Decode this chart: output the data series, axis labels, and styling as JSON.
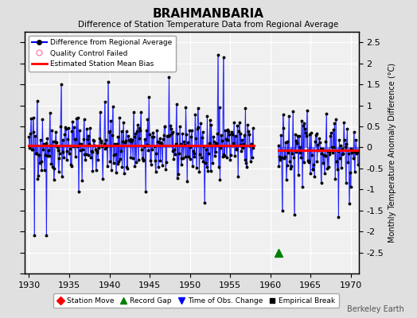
{
  "title": "BRAHMANBARIA",
  "subtitle": "Difference of Station Temperature Data from Regional Average",
  "ylabel_right": "Monthly Temperature Anomaly Difference (°C)",
  "xlim": [
    1929.5,
    1971
  ],
  "ylim": [
    -3,
    2.75
  ],
  "yticks_right": [
    -2.5,
    -2,
    -1.5,
    -1,
    -0.5,
    0,
    0.5,
    1,
    1.5,
    2,
    2.5
  ],
  "yticks_left": [
    -3,
    -2.5,
    -2,
    -1.5,
    -1,
    -0.5,
    0,
    0.5,
    1,
    1.5,
    2,
    2.5
  ],
  "xticks": [
    1930,
    1935,
    1940,
    1945,
    1950,
    1955,
    1960,
    1965,
    1970
  ],
  "bg_color": "#e0e0e0",
  "plot_bg_color": "#f0f0f0",
  "bias1": 0.05,
  "bias2": -0.07,
  "record_gap_x": 1961.0,
  "record_gap_y": -2.5,
  "watermark": "Berkeley Earth",
  "seg1_start": 1930,
  "seg1_end": 1957,
  "seg2_start": 1961,
  "seg2_end": 1970,
  "seed1": 42,
  "seed2": 43
}
